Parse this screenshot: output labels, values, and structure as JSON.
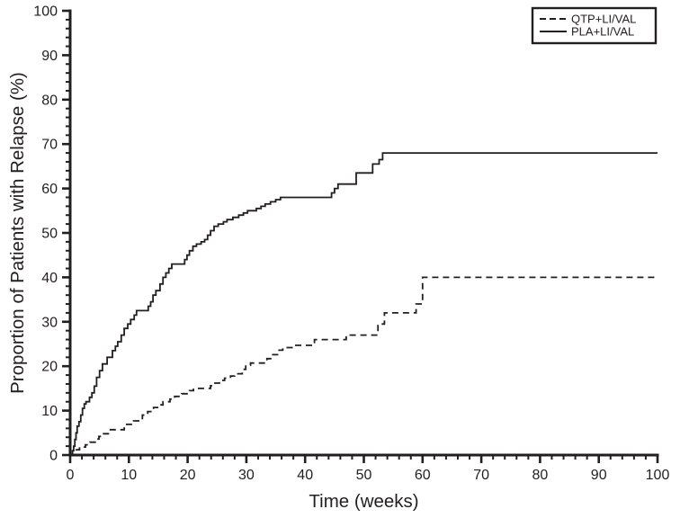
{
  "chart_data": {
    "type": "line",
    "subtype": "kaplan-meier-step",
    "title": "",
    "xlabel": "Time (weeks)",
    "ylabel": "Proportion of Patients with Relapse (%)",
    "xlim": [
      0,
      100
    ],
    "ylim": [
      0,
      100
    ],
    "x_ticks": [
      0,
      10,
      20,
      30,
      40,
      50,
      60,
      70,
      80,
      90,
      100
    ],
    "y_ticks": [
      0,
      10,
      20,
      30,
      40,
      50,
      60,
      70,
      80,
      90,
      100
    ],
    "minor_tick_step": 2,
    "grid": false,
    "legend_position": "top-right",
    "line_color": "#231f20",
    "background_color": "#ffffff",
    "legend": [
      {
        "label": "QTP+LI/VAL",
        "style": "dashed"
      },
      {
        "label": "PLA+LI/VAL",
        "style": "solid"
      }
    ],
    "series": [
      {
        "name": "QTP+LI/VAL",
        "style": "dashed",
        "points": [
          [
            0,
            0
          ],
          [
            0.9,
            1.2
          ],
          [
            1.6,
            1.8
          ],
          [
            2.6,
            2.3
          ],
          [
            3.4,
            2.9
          ],
          [
            4.4,
            3.6
          ],
          [
            4.9,
            4.2
          ],
          [
            5.4,
            4.8
          ],
          [
            6.5,
            5.7
          ],
          [
            9.2,
            6.9
          ],
          [
            10.8,
            7.7
          ],
          [
            12.3,
            9
          ],
          [
            13.2,
            9.8
          ],
          [
            14.2,
            10.7
          ],
          [
            15.2,
            11.3
          ],
          [
            15.8,
            12
          ],
          [
            17,
            12.6
          ],
          [
            17.8,
            13.2
          ],
          [
            19,
            13.8
          ],
          [
            20.3,
            14.5
          ],
          [
            21,
            15
          ],
          [
            23.9,
            15.6
          ],
          [
            24.5,
            16.2
          ],
          [
            25.4,
            16.8
          ],
          [
            26.3,
            17.3
          ],
          [
            27.3,
            17.8
          ],
          [
            28,
            18.3
          ],
          [
            29.3,
            19.3
          ],
          [
            29.9,
            20.2
          ],
          [
            30.7,
            20.7
          ],
          [
            33.5,
            21.7
          ],
          [
            34.3,
            22.6
          ],
          [
            35.3,
            23.6
          ],
          [
            36.2,
            24.2
          ],
          [
            38.2,
            24.7
          ],
          [
            41.6,
            26
          ],
          [
            47,
            27
          ],
          [
            52.4,
            29.5
          ],
          [
            53.5,
            32
          ],
          [
            58.9,
            34
          ],
          [
            60,
            40
          ],
          [
            100,
            40
          ]
        ]
      },
      {
        "name": "PLA+LI/VAL",
        "style": "solid",
        "points": [
          [
            0,
            0
          ],
          [
            0.4,
            1
          ],
          [
            0.6,
            2
          ],
          [
            0.8,
            3.5
          ],
          [
            1,
            5
          ],
          [
            1.2,
            6.5
          ],
          [
            1.5,
            7.5
          ],
          [
            1.8,
            9
          ],
          [
            2.1,
            10.5
          ],
          [
            2.4,
            11.5
          ],
          [
            2.7,
            12
          ],
          [
            3.3,
            13
          ],
          [
            3.7,
            14
          ],
          [
            4.1,
            15.5
          ],
          [
            4.5,
            17.5
          ],
          [
            5,
            19
          ],
          [
            5.5,
            20.5
          ],
          [
            6.3,
            22
          ],
          [
            7.2,
            23.5
          ],
          [
            7.7,
            24.5
          ],
          [
            8.1,
            25.5
          ],
          [
            8.7,
            27
          ],
          [
            9.2,
            28.5
          ],
          [
            9.8,
            29.5
          ],
          [
            10.3,
            30.5
          ],
          [
            10.9,
            31.5
          ],
          [
            11.3,
            32.5
          ],
          [
            13.3,
            33.5
          ],
          [
            13.7,
            34.5
          ],
          [
            14.1,
            36
          ],
          [
            14.6,
            37
          ],
          [
            15.3,
            38.5
          ],
          [
            15.8,
            40
          ],
          [
            16.3,
            41
          ],
          [
            16.8,
            42
          ],
          [
            17.3,
            43
          ],
          [
            19.5,
            44
          ],
          [
            19.9,
            45
          ],
          [
            20.3,
            46
          ],
          [
            20.9,
            47
          ],
          [
            21.5,
            47.5
          ],
          [
            22.3,
            48
          ],
          [
            22.9,
            48.5
          ],
          [
            23.4,
            49.5
          ],
          [
            23.9,
            50.5
          ],
          [
            24.5,
            51.5
          ],
          [
            25.2,
            52
          ],
          [
            26.1,
            52.5
          ],
          [
            26.7,
            53
          ],
          [
            27.7,
            53.5
          ],
          [
            28.7,
            54
          ],
          [
            29.5,
            54.5
          ],
          [
            30.2,
            55
          ],
          [
            31.7,
            55.5
          ],
          [
            32.5,
            56
          ],
          [
            33.2,
            56.5
          ],
          [
            34.1,
            57
          ],
          [
            35,
            57.5
          ],
          [
            35.8,
            58
          ],
          [
            44.5,
            59
          ],
          [
            45,
            60
          ],
          [
            45.6,
            61
          ],
          [
            48.7,
            63.5
          ],
          [
            51.5,
            65.5
          ],
          [
            52.6,
            66.5
          ],
          [
            53.2,
            68
          ],
          [
            100,
            68
          ]
        ]
      }
    ]
  }
}
